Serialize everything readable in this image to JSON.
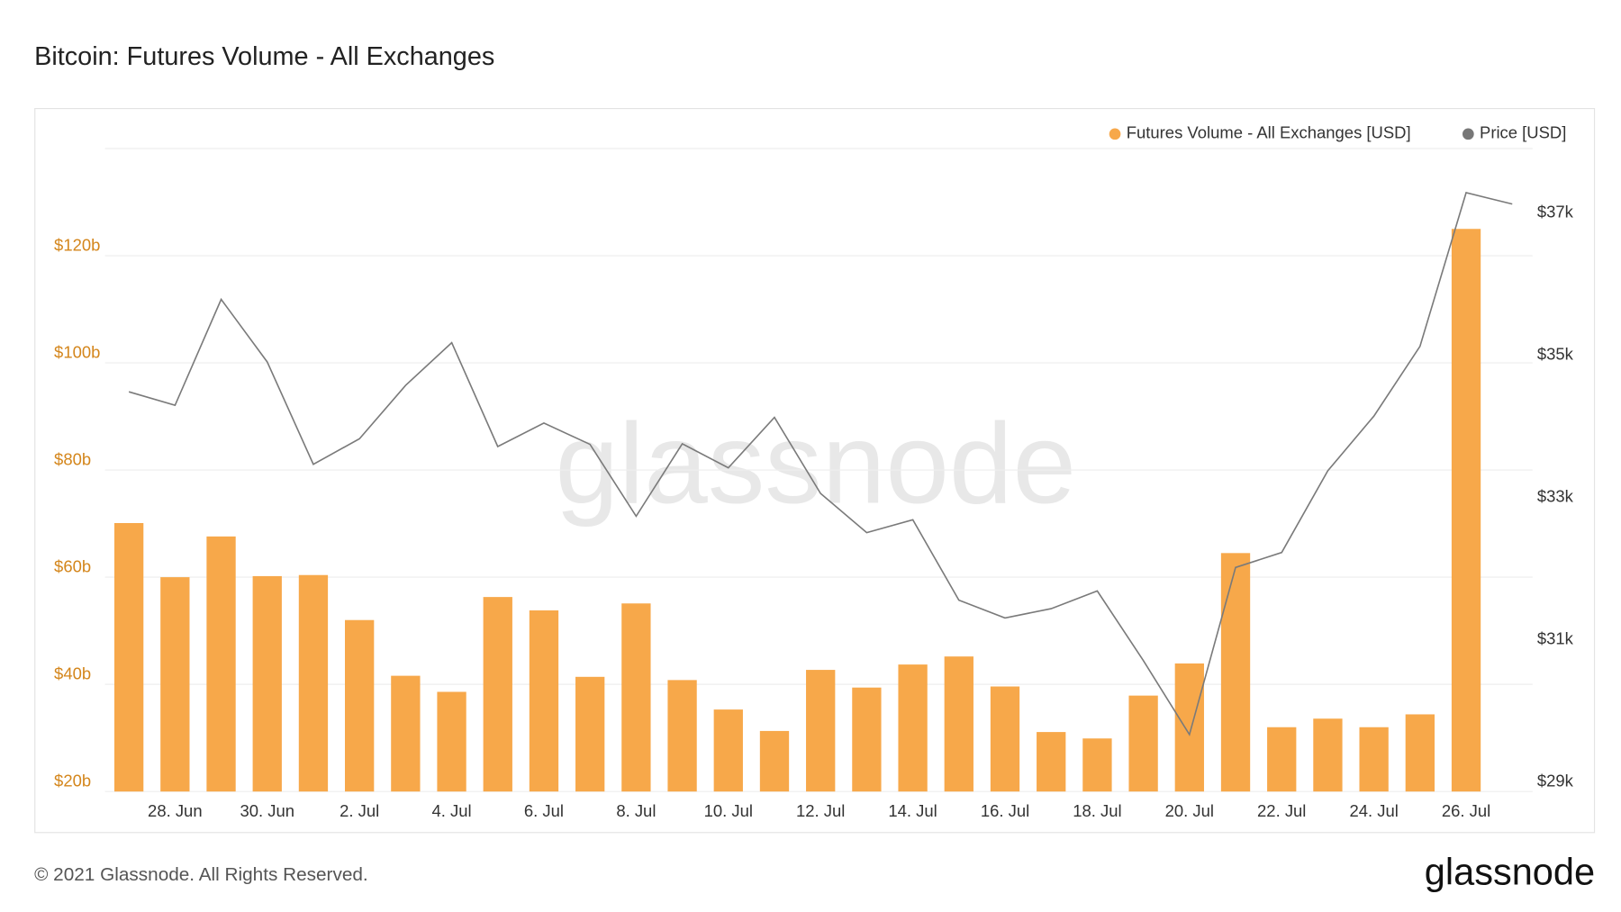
{
  "chart_data": {
    "type": "bar_line",
    "title": "Bitcoin: Futures Volume - All Exchanges",
    "footer": "© 2021 Glassnode. All Rights Reserved.",
    "logo": "glassnode",
    "watermark": "glassnode",
    "categories": [
      null,
      "28. Jun",
      null,
      "30. Jun",
      null,
      "2. Jul",
      null,
      "4. Jul",
      null,
      "6. Jul",
      null,
      "8. Jul",
      null,
      "10. Jul",
      null,
      "12. Jul",
      null,
      "14. Jul",
      null,
      "16. Jul",
      null,
      "18. Jul",
      null,
      "20. Jul",
      null,
      "22. Jul",
      null,
      "24. Jul",
      null,
      "26. Jul",
      null
    ],
    "series": [
      {
        "name": "Futures Volume - All Exchanges [USD]",
        "color": "#f7a84a",
        "type": "bar",
        "axis": "y",
        "values": [
          70.1,
          60,
          67.6,
          60.2,
          60.4,
          52,
          41.6,
          38.6,
          56.3,
          53.8,
          41.4,
          55.1,
          40.8,
          35.3,
          31.3,
          42.7,
          39.4,
          43.7,
          45.2,
          39.6,
          31.1,
          29.9,
          37.9,
          43.9,
          64.5,
          32,
          33.6,
          32,
          34.4,
          125,
          null
        ]
      },
      {
        "name": "Price [USD]",
        "color": "#7a7a7a",
        "type": "line",
        "axis": "y2",
        "values": [
          34620,
          34430,
          35920,
          35040,
          33600,
          33960,
          34710,
          35310,
          33850,
          34180,
          33880,
          32870,
          33890,
          33550,
          34260,
          33190,
          32640,
          32820,
          31690,
          31440,
          31570,
          31820,
          30840,
          29800,
          32150,
          32360,
          33510,
          34280,
          35260,
          37420,
          37260
        ]
      }
    ],
    "ylim": [
      20,
      140
    ],
    "yticks": [
      {
        "value": 20,
        "label": "$20b"
      },
      {
        "value": 40,
        "label": "$40b"
      },
      {
        "value": 60,
        "label": "$60b"
      },
      {
        "value": 80,
        "label": "$80b"
      },
      {
        "value": 100,
        "label": "$100b"
      },
      {
        "value": 120,
        "label": "$120b"
      }
    ],
    "y2lim": [
      29000,
      38040
    ],
    "y2ticks": [
      {
        "value": 29000,
        "label": "$29k"
      },
      {
        "value": 31000,
        "label": "$31k"
      },
      {
        "value": 33000,
        "label": "$33k"
      },
      {
        "value": 35000,
        "label": "$35k"
      },
      {
        "value": 37000,
        "label": "$37k"
      }
    ],
    "grid": true,
    "legend": "top-right"
  }
}
